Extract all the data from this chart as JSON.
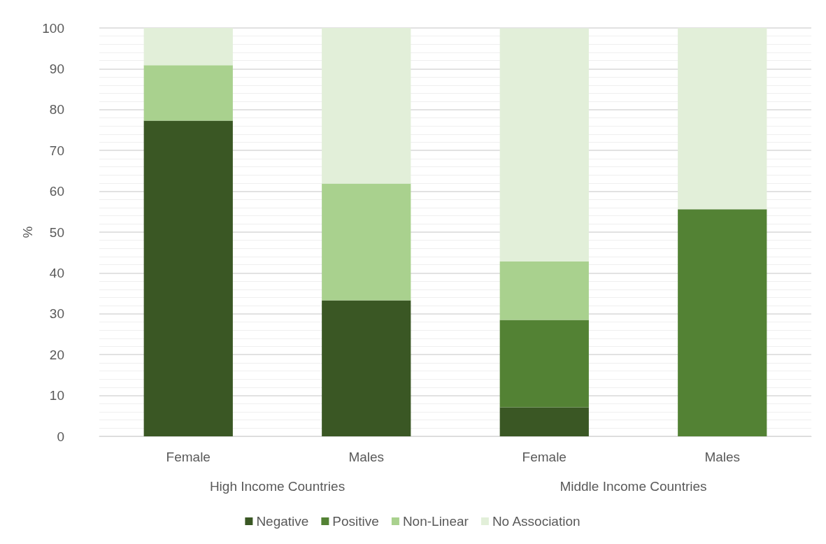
{
  "chart_data": {
    "type": "bar",
    "stacked": true,
    "ylabel": "%",
    "categories": [
      "Female",
      "Males",
      "Female",
      "Males"
    ],
    "annotations": [
      "High Income Countries",
      "Middle Income Countries"
    ],
    "series": [
      {
        "name": "Negative",
        "color": "#3a5724",
        "values": [
          77.3,
          33.3,
          7.1,
          0
        ]
      },
      {
        "name": "Positive",
        "color": "#538234",
        "values": [
          0,
          0,
          21.4,
          55.6
        ]
      },
      {
        "name": "Non-Linear",
        "color": "#a9d18e",
        "values": [
          13.6,
          28.6,
          14.3,
          0
        ]
      },
      {
        "name": "No Association",
        "color": "#e2efd9",
        "values": [
          9.1,
          38.1,
          57.1,
          44.4
        ]
      }
    ],
    "ylim": [
      0,
      100
    ],
    "yticks": [
      0,
      10,
      20,
      30,
      40,
      50,
      60,
      70,
      80,
      90,
      100
    ],
    "grid": "y",
    "legend": "bottom"
  }
}
